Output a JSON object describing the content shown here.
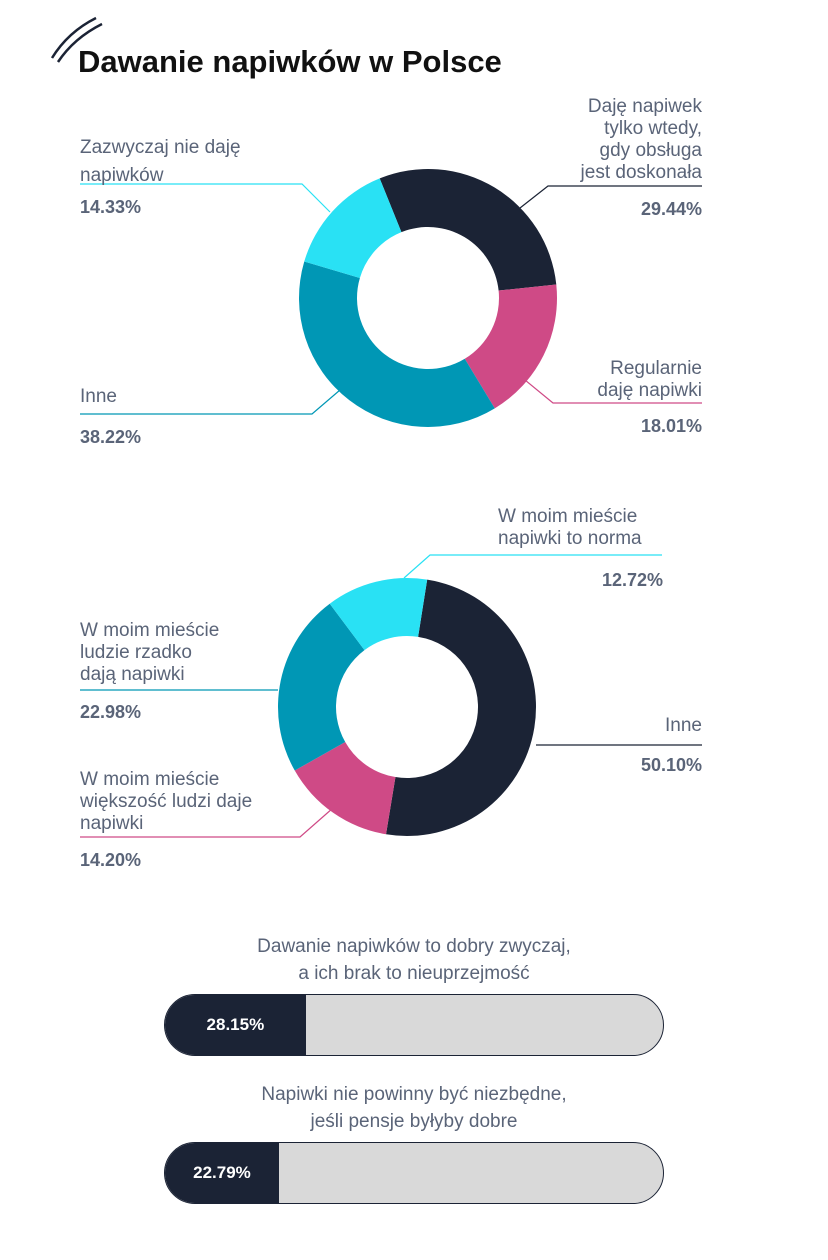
{
  "title": "Dawanie napiwków w Polsce",
  "colors": {
    "dark": "#1b2335",
    "pink": "#cf4a86",
    "teal": "#0097b5",
    "cyan": "#29e1f4",
    "bar_bg": "#d9d9d9",
    "text": "#5a6478"
  },
  "chart_data": [
    {
      "type": "pie",
      "variant": "donut",
      "title": "",
      "slices": [
        {
          "label": "Daję napiwek\ntylko wtedy,\ngdy obsługa\njest doskonała",
          "value": 29.44,
          "display": "29.44%",
          "color": "#1b2335"
        },
        {
          "label": "Regularnie\ndaję napiwki",
          "value": 18.01,
          "display": "18.01%",
          "color": "#cf4a86"
        },
        {
          "label": "Inne",
          "value": 38.22,
          "display": "38.22%",
          "color": "#0097b5"
        },
        {
          "label": "Zazwyczaj nie daję\nnapiwków",
          "value": 14.33,
          "display": "14.33%",
          "color": "#29e1f4"
        }
      ]
    },
    {
      "type": "pie",
      "variant": "donut",
      "title": "",
      "slices": [
        {
          "label": "Inne",
          "value": 50.1,
          "display": "50.10%",
          "color": "#1b2335"
        },
        {
          "label": "W moim mieście\nwiększość ludzi daje\nnapiwki",
          "value": 14.2,
          "display": "14.20%",
          "color": "#cf4a86"
        },
        {
          "label": "W moim mieście\nludzie rzadko\ndają napiwki",
          "value": 22.98,
          "display": "22.98%",
          "color": "#0097b5"
        },
        {
          "label": "W moim mieście\nnapiwki to norma",
          "value": 12.72,
          "display": "12.72%",
          "color": "#29e1f4"
        }
      ]
    },
    {
      "type": "bar",
      "orientation": "horizontal",
      "max": 100,
      "bars": [
        {
          "label": "Dawanie napiwków to dobry zwyczaj,\na ich brak to nieuprzejmość",
          "value": 28.15,
          "display": "28.15%"
        },
        {
          "label": "Napiwki nie powinny być niezbędne,\njeśli pensje byłyby dobre",
          "value": 22.79,
          "display": "22.79%"
        }
      ]
    }
  ]
}
